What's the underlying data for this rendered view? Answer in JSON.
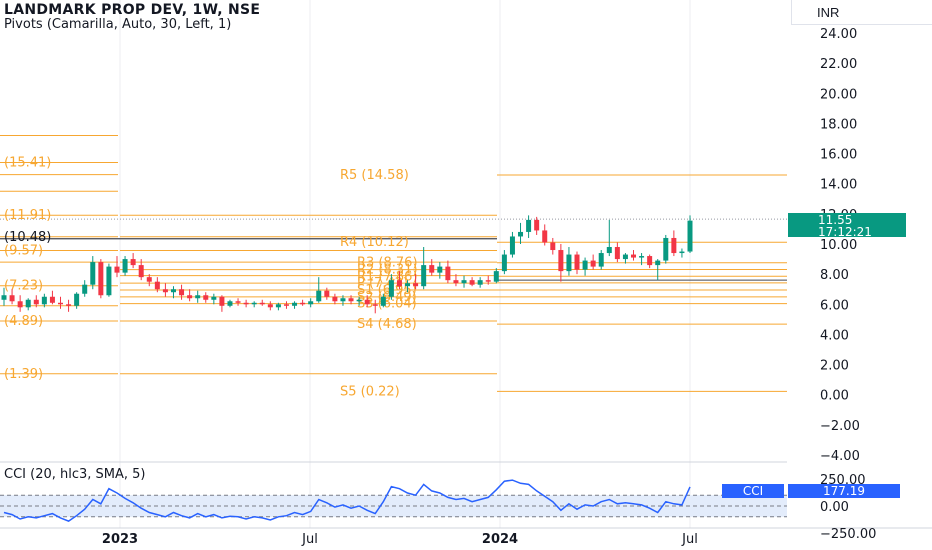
{
  "header": {
    "title": "LANDMARK PROP DEV, 1W, NSE",
    "indicator": "Pivots (Camarilla, Auto, 30, Left, 1)",
    "currency": "INR"
  },
  "price_tag": {
    "price": "11.55",
    "countdown": "17:12:21"
  },
  "cci_panel": {
    "label": "CCI (20, hlc3, SMA, 5)",
    "tag_name": "CCI",
    "tag_value": "177.19",
    "ticks": [
      "250.00",
      "0.00",
      "−250.00"
    ]
  },
  "x_axis": [
    {
      "text": "2023",
      "bold": true
    },
    {
      "text": "Jul",
      "bold": false
    },
    {
      "text": "2024",
      "bold": true
    },
    {
      "text": "Jul",
      "bold": false
    }
  ],
  "colors": {
    "up": "#089981",
    "down": "#f23645",
    "pivot": "#f7a731",
    "cci": "#2962ff"
  },
  "chart_data": {
    "type": "candlestick",
    "ylim": [
      -4,
      25
    ],
    "y_ticks": [
      "24.00",
      "22.00",
      "20.00",
      "18.00",
      "16.00",
      "14.00",
      "12.00",
      "10.00",
      "8.00",
      "6.00",
      "4.00",
      "2.00",
      "0.00",
      "−2.00",
      "−4.00"
    ],
    "pivot_labels": [
      {
        "text": "R5 (14.58)",
        "y": 14.58
      },
      {
        "text": "R4 (10.12)",
        "y": 10.12
      },
      {
        "text": "R3 (8.76)",
        "y": 8.76
      },
      {
        "text": "R2 (8.31)",
        "y": 8.31
      },
      {
        "text": "R1 (7.86)",
        "y": 7.86
      },
      {
        "text": "P (7.42)",
        "y": 7.42
      },
      {
        "text": "S1 (6.95)",
        "y": 6.95
      },
      {
        "text": "S2 (6.49)",
        "y": 6.49
      },
      {
        "text": "S3 (6.04)",
        "y": 6.04
      },
      {
        "text": "S4 (4.68)",
        "y": 4.68
      },
      {
        "text": "S5 (0.22)",
        "y": 0.22
      }
    ],
    "left_labels": [
      {
        "text": "(15.41)",
        "y": 15.41
      },
      {
        "text": "(11.91)",
        "y": 11.91
      },
      {
        "text": "(10.48)",
        "y": 10.48
      },
      {
        "text": "(9.57)",
        "y": 9.57
      },
      {
        "text": "(7.23)",
        "y": 7.23
      },
      {
        "text": "(4.89)",
        "y": 4.89
      },
      {
        "text": "(1.39)",
        "y": 1.39
      }
    ],
    "candles": [
      [
        6.3,
        7.1,
        5.9,
        6.6
      ],
      [
        6.6,
        7.0,
        6.0,
        6.2
      ],
      [
        6.2,
        6.6,
        5.5,
        5.8
      ],
      [
        5.8,
        6.4,
        5.6,
        6.3
      ],
      [
        6.3,
        6.6,
        5.8,
        6.0
      ],
      [
        6.0,
        6.7,
        5.8,
        6.5
      ],
      [
        6.5,
        6.9,
        6.0,
        6.1
      ],
      [
        6.1,
        6.5,
        5.7,
        6.0
      ],
      [
        6.0,
        6.3,
        5.5,
        5.9
      ],
      [
        5.9,
        6.8,
        5.7,
        6.7
      ],
      [
        6.7,
        7.6,
        6.5,
        7.3
      ],
      [
        7.3,
        9.2,
        7.0,
        8.8
      ],
      [
        8.8,
        9.0,
        6.4,
        6.6
      ],
      [
        6.6,
        8.7,
        6.5,
        8.5
      ],
      [
        8.5,
        9.2,
        7.8,
        8.1
      ],
      [
        8.1,
        9.2,
        7.9,
        9.0
      ],
      [
        9.0,
        9.4,
        8.4,
        8.6
      ],
      [
        8.6,
        9.0,
        7.6,
        7.8
      ],
      [
        7.8,
        8.0,
        7.2,
        7.5
      ],
      [
        7.5,
        7.8,
        6.8,
        7.0
      ],
      [
        7.0,
        7.4,
        6.5,
        6.8
      ],
      [
        6.8,
        7.2,
        6.4,
        7.0
      ],
      [
        7.0,
        7.3,
        6.3,
        6.6
      ],
      [
        6.6,
        7.0,
        6.2,
        6.4
      ],
      [
        6.4,
        6.9,
        6.1,
        6.6
      ],
      [
        6.6,
        6.8,
        6.1,
        6.3
      ],
      [
        6.3,
        6.7,
        6.0,
        6.5
      ],
      [
        6.5,
        6.6,
        5.5,
        5.9
      ],
      [
        5.9,
        6.3,
        5.8,
        6.2
      ],
      [
        6.2,
        6.4,
        5.9,
        6.1
      ],
      [
        6.1,
        6.3,
        5.8,
        6.0
      ],
      [
        6.0,
        6.2,
        5.8,
        6.1
      ],
      [
        6.1,
        6.3,
        5.9,
        6.0
      ],
      [
        6.0,
        6.2,
        5.6,
        5.8
      ],
      [
        5.8,
        6.1,
        5.6,
        6.0
      ],
      [
        6.0,
        6.2,
        5.7,
        5.9
      ],
      [
        5.9,
        6.2,
        5.7,
        6.1
      ],
      [
        6.1,
        6.3,
        5.9,
        6.0
      ],
      [
        6.0,
        6.4,
        5.8,
        6.2
      ],
      [
        6.2,
        7.8,
        6.1,
        6.9
      ],
      [
        6.9,
        7.1,
        6.3,
        6.5
      ],
      [
        6.5,
        6.7,
        6.0,
        6.2
      ],
      [
        6.2,
        6.6,
        5.9,
        6.4
      ],
      [
        6.4,
        6.6,
        6.0,
        6.2
      ],
      [
        6.2,
        6.5,
        5.9,
        6.3
      ],
      [
        6.3,
        6.6,
        5.8,
        6.0
      ],
      [
        6.0,
        6.3,
        5.4,
        5.9
      ],
      [
        5.9,
        6.7,
        5.8,
        6.5
      ],
      [
        6.5,
        8.0,
        6.3,
        7.6
      ],
      [
        7.6,
        8.2,
        7.0,
        7.2
      ],
      [
        7.2,
        7.6,
        6.8,
        7.4
      ],
      [
        7.4,
        8.0,
        7.0,
        7.2
      ],
      [
        7.2,
        9.8,
        7.0,
        8.6
      ],
      [
        8.6,
        9.0,
        7.9,
        8.1
      ],
      [
        8.1,
        8.8,
        7.7,
        8.5
      ],
      [
        8.5,
        8.9,
        7.4,
        7.6
      ],
      [
        7.6,
        8.0,
        7.2,
        7.4
      ],
      [
        7.4,
        7.9,
        7.1,
        7.6
      ],
      [
        7.6,
        7.8,
        7.2,
        7.3
      ],
      [
        7.3,
        7.8,
        7.1,
        7.6
      ],
      [
        7.6,
        7.9,
        7.3,
        7.5
      ],
      [
        7.5,
        8.4,
        7.4,
        8.2
      ],
      [
        8.2,
        9.6,
        8.0,
        9.3
      ],
      [
        9.3,
        10.8,
        9.1,
        10.5
      ],
      [
        10.5,
        11.4,
        10.0,
        10.8
      ],
      [
        10.8,
        11.9,
        10.4,
        11.6
      ],
      [
        11.6,
        11.8,
        10.6,
        10.9
      ],
      [
        10.9,
        11.3,
        9.9,
        10.1
      ],
      [
        10.1,
        10.4,
        9.3,
        9.6
      ],
      [
        9.6,
        10.0,
        7.5,
        8.2
      ],
      [
        8.2,
        9.8,
        7.9,
        9.3
      ],
      [
        9.3,
        9.5,
        8.0,
        8.3
      ],
      [
        8.3,
        9.1,
        7.9,
        8.9
      ],
      [
        8.9,
        9.3,
        8.3,
        8.5
      ],
      [
        8.5,
        9.6,
        8.3,
        9.4
      ],
      [
        9.4,
        11.6,
        9.2,
        9.8
      ],
      [
        9.8,
        10.1,
        8.8,
        9.0
      ],
      [
        9.0,
        9.4,
        8.7,
        9.3
      ],
      [
        9.3,
        9.6,
        8.9,
        9.1
      ],
      [
        9.1,
        9.4,
        8.6,
        9.2
      ],
      [
        9.2,
        9.3,
        8.4,
        8.6
      ],
      [
        8.6,
        9.0,
        7.6,
        8.9
      ],
      [
        8.9,
        10.6,
        8.7,
        10.4
      ],
      [
        10.4,
        10.9,
        9.2,
        9.4
      ],
      [
        9.4,
        9.7,
        9.1,
        9.5
      ],
      [
        9.5,
        11.9,
        9.4,
        11.55
      ]
    ],
    "cci": [
      -60,
      -80,
      -120,
      -100,
      -110,
      -90,
      -70,
      -110,
      -140,
      -90,
      -30,
      60,
      20,
      160,
      120,
      70,
      30,
      -20,
      -60,
      -80,
      -100,
      -60,
      -90,
      -110,
      -70,
      -100,
      -80,
      -110,
      -95,
      -100,
      -120,
      -100,
      -110,
      -130,
      -100,
      -90,
      -60,
      -80,
      -50,
      60,
      30,
      -10,
      10,
      -20,
      0,
      -40,
      -70,
      40,
      180,
      160,
      120,
      100,
      200,
      140,
      120,
      80,
      60,
      70,
      40,
      60,
      80,
      150,
      230,
      240,
      210,
      200,
      140,
      90,
      40,
      -40,
      20,
      -30,
      10,
      0,
      40,
      60,
      20,
      30,
      20,
      10,
      -20,
      -60,
      40,
      20,
      10,
      177
    ]
  }
}
